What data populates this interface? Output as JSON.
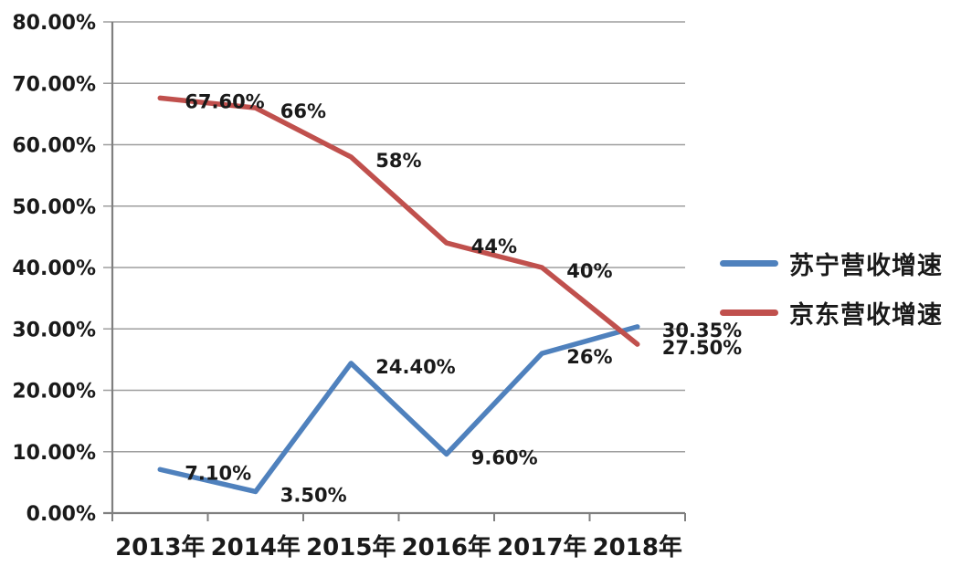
{
  "chart_data": {
    "type": "line",
    "title": "",
    "categories": [
      "2013年",
      "2014年",
      "2015年",
      "2016年",
      "2017年",
      "2018年"
    ],
    "y_axis": {
      "min": 0,
      "max": 80,
      "step": 10,
      "tick_labels": [
        "0.00%",
        "10.00%",
        "20.00%",
        "30.00%",
        "40.00%",
        "50.00%",
        "60.00%",
        "70.00%",
        "80.00%"
      ]
    },
    "grid": true,
    "legend_position": "right",
    "series": [
      {
        "name": "苏宁营收增速",
        "color": "#4F81BD",
        "values": [
          7.1,
          3.5,
          24.4,
          9.6,
          26,
          30.35
        ],
        "data_labels": [
          "7.10%",
          "3.50%",
          "24.40%",
          "9.60%",
          "26%",
          "30.35%"
        ]
      },
      {
        "name": "京东营收增速",
        "color": "#C0504D",
        "values": [
          67.6,
          66,
          58,
          44,
          40,
          27.5
        ],
        "data_labels": [
          "67.60%",
          "66%",
          "58%",
          "44%",
          "40%",
          "27.50%"
        ]
      }
    ],
    "colors": {
      "gridline": "#9e9e9e",
      "axis": "#7f7f7f",
      "label": "#1a1a1a"
    }
  }
}
